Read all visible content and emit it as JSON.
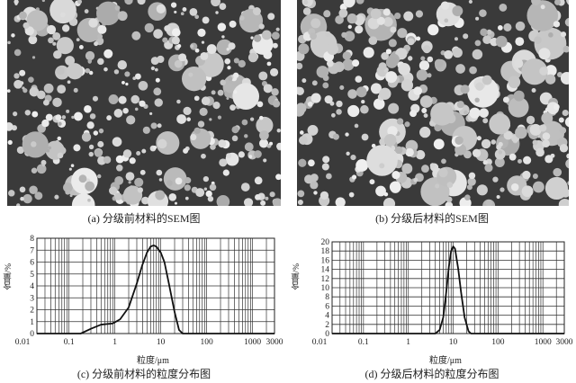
{
  "figure": {
    "captions": {
      "a": "(a) 分级前材料的SEM图",
      "b": "(b) 分级后材料的SEM图",
      "c": "(c) 分级前材料的粒度分布图",
      "d": "(d) 分级后材料的粒度分布图"
    }
  },
  "chart_data": [
    {
      "id": "c",
      "type": "line",
      "xlabel": "粒度/μm",
      "ylabel": "含量/%",
      "xscale": "log",
      "xlim": [
        0.02,
        3000
      ],
      "ylim": [
        0,
        8
      ],
      "xticks": [
        "0.01",
        "0.1",
        "1",
        "10",
        "100",
        "1000",
        "3000"
      ],
      "yticks": [
        "0",
        "1",
        "2",
        "3",
        "4",
        "5",
        "6",
        "7",
        "8"
      ],
      "grid": true,
      "x": [
        0.18,
        0.3,
        0.5,
        0.9,
        1.3,
        2,
        3,
        4,
        5,
        6,
        7,
        8,
        10,
        12,
        15,
        20,
        25,
        30
      ],
      "y": [
        0,
        0.4,
        0.75,
        0.85,
        1.2,
        2.2,
        4.2,
        5.8,
        6.8,
        7.3,
        7.4,
        7.3,
        6.8,
        6.0,
        4.2,
        1.8,
        0.3,
        0
      ]
    },
    {
      "id": "d",
      "type": "line",
      "xlabel": "粒度/μm",
      "ylabel": "含量/%",
      "xscale": "log",
      "xlim": [
        0.02,
        3000
      ],
      "ylim": [
        0,
        20
      ],
      "xticks": [
        "0.01",
        "0.1",
        "1",
        "10",
        "100",
        "1000",
        "3000"
      ],
      "yticks": [
        "0",
        "2",
        "4",
        "6",
        "8",
        "10",
        "12",
        "14",
        "16",
        "18",
        "20"
      ],
      "grid": true,
      "x": [
        4,
        5,
        6,
        7,
        8,
        9,
        10,
        11,
        13,
        15,
        18,
        22,
        25
      ],
      "y": [
        0,
        0.8,
        3.5,
        9,
        14.5,
        18,
        19,
        18.5,
        14,
        9,
        3.5,
        0.5,
        0
      ]
    }
  ]
}
